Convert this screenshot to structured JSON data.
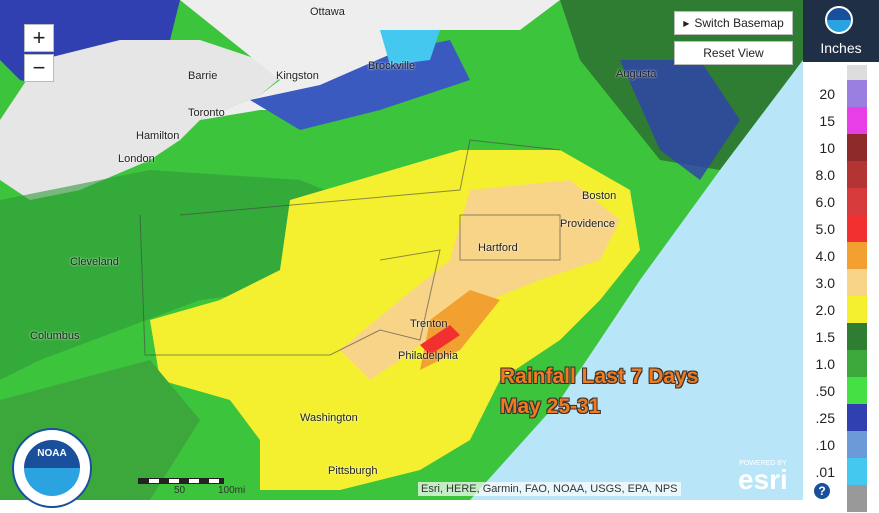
{
  "controls": {
    "zoom_in": "+",
    "zoom_out": "−",
    "switch_basemap": "Switch Basemap",
    "reset_view": "Reset View",
    "help": "?"
  },
  "legend": {
    "title": "Inches",
    "items": [
      {
        "label": "20",
        "color": "#9b7fe0"
      },
      {
        "label": "15",
        "color": "#e83ee8"
      },
      {
        "label": "10",
        "color": "#8e2a2a"
      },
      {
        "label": "8.0",
        "color": "#b43434"
      },
      {
        "label": "6.0",
        "color": "#d63a3a"
      },
      {
        "label": "5.0",
        "color": "#f23030"
      },
      {
        "label": "4.0",
        "color": "#f2a030"
      },
      {
        "label": "3.0",
        "color": "#f8d488"
      },
      {
        "label": "2.0",
        "color": "#f4f030"
      },
      {
        "label": "1.5",
        "color": "#2e7d32"
      },
      {
        "label": "1.0",
        "color": "#3ca83c"
      },
      {
        "label": ".50",
        "color": "#44e044"
      },
      {
        "label": ".25",
        "color": "#3040b0"
      },
      {
        "label": ".10",
        "color": "#6c9ad8"
      },
      {
        "label": ".01",
        "color": "#44c8f0"
      }
    ]
  },
  "overlay": {
    "title": "Rainfall Last 7 Days",
    "dates": "May 25-31"
  },
  "places": [
    "Ottawa",
    "Barrie",
    "Kingston",
    "Brockville",
    "Toronto",
    "Hamilton",
    "London",
    "Cleveland",
    "Columbus",
    "Pittsburgh",
    "Hartford",
    "Providence",
    "Boston",
    "Trenton",
    "Philadelphia",
    "Washington",
    "Augusta"
  ],
  "scale": {
    "mid": "50",
    "end": "100mi"
  },
  "logo": "NOAA",
  "attribution": "Esri, HERE, Garmin, FAO, NOAA, USGS, EPA, NPS",
  "powered": {
    "small": "POWERED BY",
    "brand": "esri"
  }
}
